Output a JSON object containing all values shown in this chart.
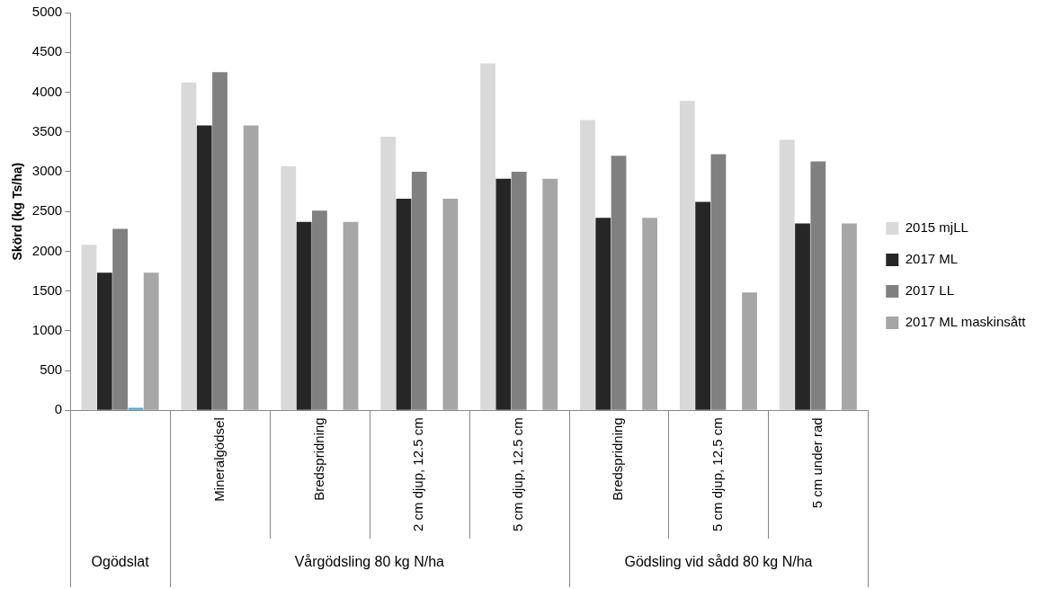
{
  "chart_data": {
    "type": "bar",
    "ylabel": "Skörd (kg Ts/ha)",
    "categories": [
      null,
      "Mineralgödsel",
      "Bredspridning",
      "2 cm djup, 12.5 cm",
      "5 cm djup, 12.5 cm",
      "Bredspridning",
      "5 cm djup, 12,5 cm",
      "5 cm under rad"
    ],
    "annotations": [
      "Ogödslat",
      "Vårgödsling 80 kg N/ha",
      "Gödsling vid sådd 80 kg N/ha"
    ],
    "series": [
      {
        "name": "2015 mjLL",
        "color": "#d9d9d9",
        "values": [
          2080,
          4120,
          3070,
          3440,
          4360,
          3650,
          3890,
          3400
        ]
      },
      {
        "name": "2017 ML",
        "color": "#262626",
        "values": [
          1730,
          3580,
          2370,
          2660,
          2910,
          2420,
          2620,
          2350
        ]
      },
      {
        "name": "2017 LL",
        "color": "#808080",
        "values": [
          2280,
          4250,
          2510,
          3000,
          3000,
          3200,
          3220,
          3130
        ]
      },
      {
        "color": "#4bacc6",
        "values": [
          30,
          null,
          null,
          null,
          null,
          null,
          null,
          null
        ]
      },
      {
        "name": "2017 ML maskinsått",
        "color": "#a6a6a6",
        "values": [
          1730,
          3580,
          2370,
          2660,
          2910,
          2420,
          1480,
          2350
        ]
      }
    ],
    "ylim": [
      0,
      5000
    ],
    "yticks": [
      0,
      500,
      1000,
      1500,
      2000,
      2500,
      3000,
      3500,
      4000,
      4500,
      5000
    ],
    "grid": false,
    "legend": "right"
  }
}
